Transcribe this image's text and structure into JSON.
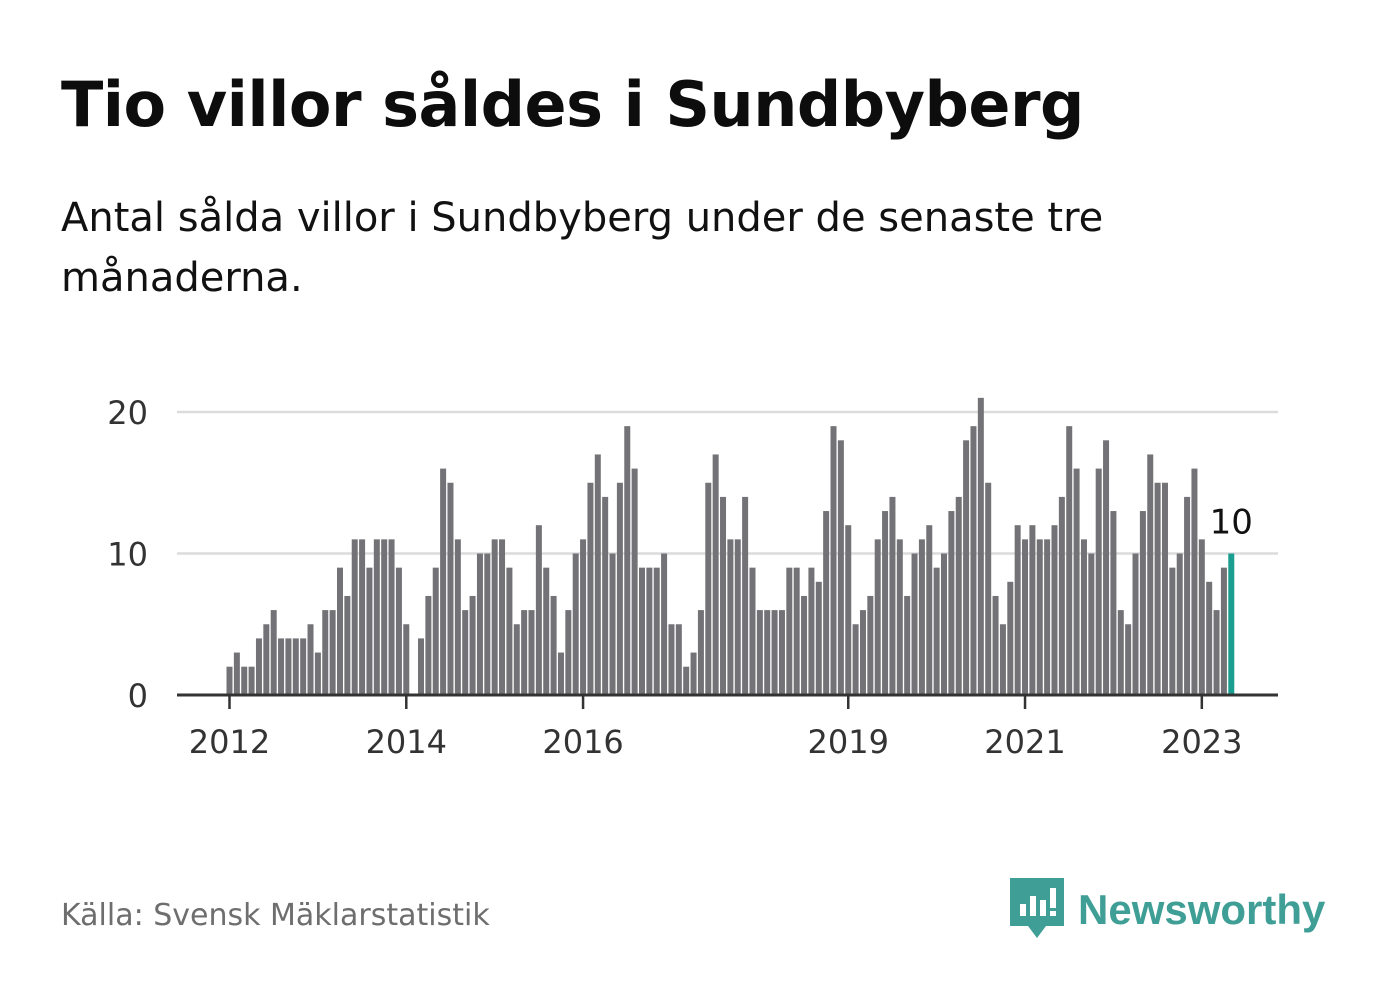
{
  "title": "Tio villor såldes i Sundbyberg",
  "subtitle": "Antal sålda villor i Sundbyberg under de senaste tre månaderna.",
  "source": "Källa: Svensk Mäklarstatistik",
  "brand": {
    "name": "Newsworthy",
    "icon": "newsworthy-logo-icon",
    "color": "#3f9e95"
  },
  "colors": {
    "bar": "#737276",
    "highlight": "#1a9e8f",
    "grid": "#dcdcdc",
    "axis": "#333333",
    "text": "#333333"
  },
  "chart_data": {
    "type": "bar",
    "title": "",
    "xlabel": "",
    "ylabel": "",
    "ylim": [
      0,
      20
    ],
    "yticks": [
      0,
      10,
      20
    ],
    "start": "2012-01",
    "xticks": [
      {
        "label": "2012",
        "month_index": 0
      },
      {
        "label": "2014",
        "month_index": 24
      },
      {
        "label": "2016",
        "month_index": 48
      },
      {
        "label": "2019",
        "month_index": 84
      },
      {
        "label": "2021",
        "month_index": 108
      },
      {
        "label": "2023",
        "month_index": 132
      }
    ],
    "values": [
      2,
      3,
      2,
      2,
      4,
      5,
      6,
      4,
      4,
      4,
      4,
      5,
      3,
      6,
      6,
      9,
      7,
      11,
      11,
      9,
      11,
      11,
      11,
      9,
      5,
      0,
      4,
      7,
      9,
      16,
      15,
      11,
      6,
      7,
      10,
      10,
      11,
      11,
      9,
      5,
      6,
      6,
      12,
      9,
      7,
      3,
      6,
      10,
      11,
      15,
      17,
      14,
      10,
      15,
      19,
      16,
      9,
      9,
      9,
      10,
      5,
      5,
      2,
      3,
      6,
      15,
      17,
      14,
      11,
      11,
      14,
      9,
      6,
      6,
      6,
      6,
      9,
      9,
      7,
      9,
      8,
      13,
      19,
      18,
      12,
      5,
      6,
      7,
      11,
      13,
      14,
      11,
      7,
      10,
      11,
      12,
      9,
      10,
      13,
      14,
      18,
      19,
      21,
      15,
      7,
      5,
      8,
      12,
      11,
      12,
      11,
      11,
      12,
      14,
      19,
      16,
      11,
      10,
      16,
      18,
      13,
      6,
      5,
      10,
      13,
      17,
      15,
      15,
      9,
      10,
      14,
      16,
      11,
      8,
      6,
      9,
      10
    ],
    "highlight_label": "10"
  }
}
